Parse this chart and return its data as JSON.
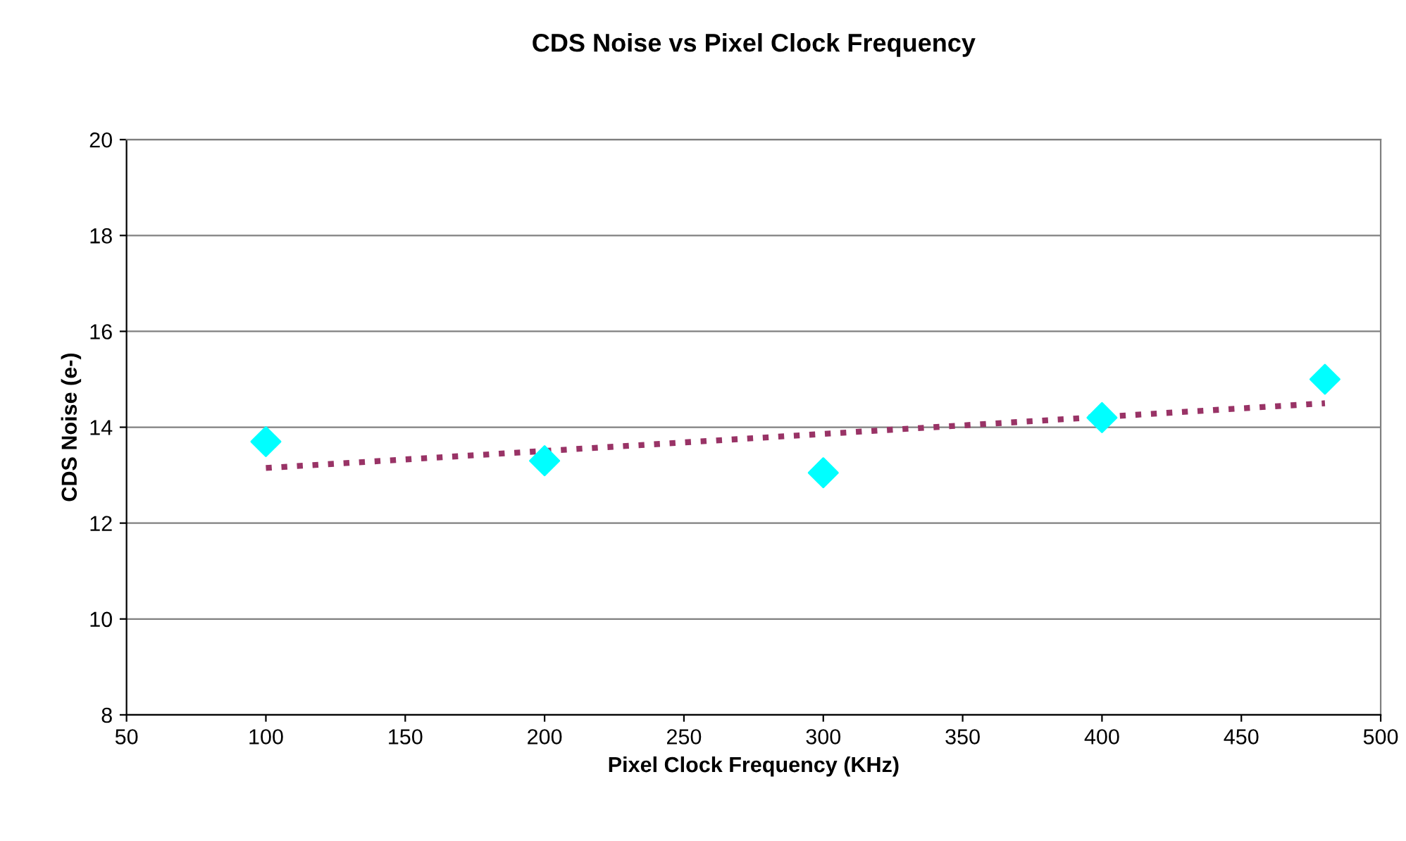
{
  "chart_data": {
    "type": "scatter",
    "title": "CDS Noise vs Pixel Clock Frequency",
    "xlabel": "Pixel Clock Frequency (KHz)",
    "ylabel": "CDS Noise (e-)",
    "series": [
      {
        "color": "#00ffff",
        "marker": "diamond",
        "x": [
          100,
          200,
          300,
          400,
          480
        ],
        "values": [
          13.7,
          13.3,
          13.05,
          14.2,
          15.0
        ]
      },
      {
        "type": "line",
        "color": "#993366",
        "line_style": "dotted",
        "marker": "none",
        "x": [
          100,
          480
        ],
        "values": [
          13.15,
          14.5
        ]
      }
    ],
    "xlim": [
      50,
      500
    ],
    "xticks": [
      50,
      100,
      150,
      200,
      250,
      300,
      350,
      400,
      450,
      500
    ],
    "ylim": [
      8,
      20
    ],
    "yticks": [
      8,
      10,
      12,
      14,
      16,
      18,
      20
    ],
    "grid": "y",
    "legend": false
  }
}
